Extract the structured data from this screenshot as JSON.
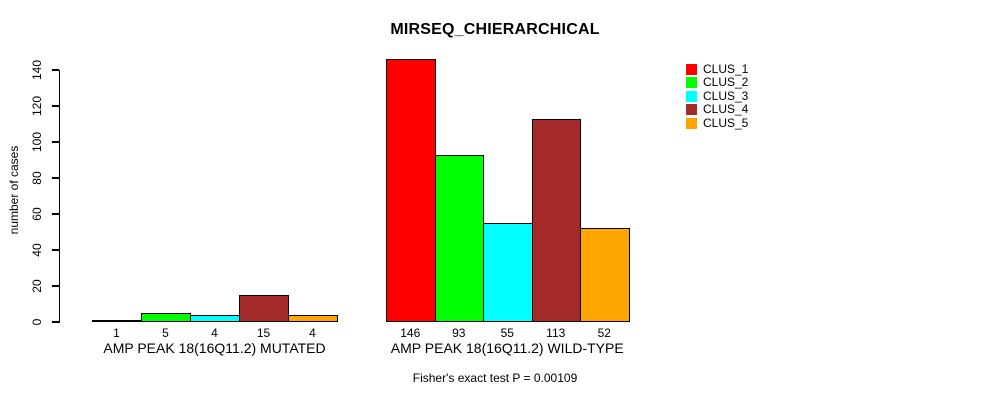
{
  "chart_data": {
    "type": "bar",
    "title": "MIRSEQ_CHIERARCHICAL",
    "ylabel": "number of cases",
    "xlabel": "",
    "ylim": [
      0,
      140
    ],
    "yticks": [
      0,
      20,
      40,
      60,
      80,
      100,
      120,
      140
    ],
    "grid": false,
    "bar_borders": true,
    "legend_position": "top-right",
    "categories": [
      "AMP PEAK 18(16Q11.2) MUTATED",
      "AMP PEAK 18(16Q11.2) WILD-TYPE"
    ],
    "series": [
      {
        "name": "CLUS_1",
        "color": "#ff0000",
        "values": [
          1,
          146
        ]
      },
      {
        "name": "CLUS_2",
        "color": "#00ff00",
        "values": [
          5,
          93
        ]
      },
      {
        "name": "CLUS_3",
        "color": "#00ffff",
        "values": [
          4,
          55
        ]
      },
      {
        "name": "CLUS_4",
        "color": "#a52a2a",
        "values": [
          15,
          113
        ]
      },
      {
        "name": "CLUS_5",
        "color": "#ffa500",
        "values": [
          4,
          52
        ]
      }
    ],
    "bar_value_labels": [
      [
        1,
        5,
        4,
        15,
        4
      ],
      [
        146,
        93,
        55,
        113,
        52
      ]
    ],
    "annotation": "Fisher's exact test P = 0.00109"
  }
}
